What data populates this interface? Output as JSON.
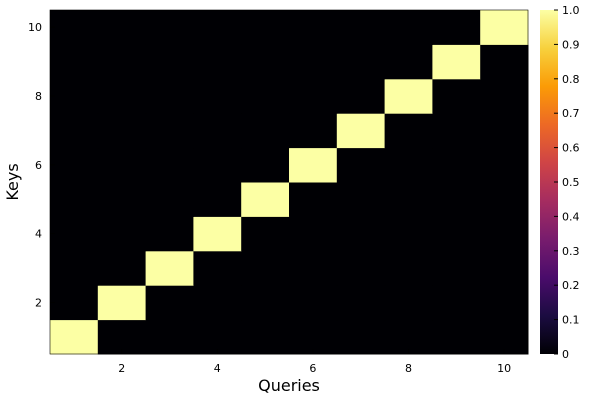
{
  "chart_data": {
    "type": "heatmap",
    "title": "",
    "xlabel": "Queries",
    "ylabel": "Keys",
    "x": [
      1,
      2,
      3,
      4,
      5,
      6,
      7,
      8,
      9,
      10
    ],
    "y": [
      1,
      2,
      3,
      4,
      5,
      6,
      7,
      8,
      9,
      10
    ],
    "z": [
      [
        1,
        0,
        0,
        0,
        0,
        0,
        0,
        0,
        0,
        0
      ],
      [
        0,
        1,
        0,
        0,
        0,
        0,
        0,
        0,
        0,
        0
      ],
      [
        0,
        0,
        1,
        0,
        0,
        0,
        0,
        0,
        0,
        0
      ],
      [
        0,
        0,
        0,
        1,
        0,
        0,
        0,
        0,
        0,
        0
      ],
      [
        0,
        0,
        0,
        0,
        1,
        0,
        0,
        0,
        0,
        0
      ],
      [
        0,
        0,
        0,
        0,
        0,
        1,
        0,
        0,
        0,
        0
      ],
      [
        0,
        0,
        0,
        0,
        0,
        0,
        1,
        0,
        0,
        0
      ],
      [
        0,
        0,
        0,
        0,
        0,
        0,
        0,
        1,
        0,
        0
      ],
      [
        0,
        0,
        0,
        0,
        0,
        0,
        0,
        0,
        1,
        0
      ],
      [
        0,
        0,
        0,
        0,
        0,
        0,
        0,
        0,
        0,
        1
      ]
    ],
    "xlim": [
      0.5,
      10.5
    ],
    "ylim": [
      0.5,
      10.5
    ],
    "xticks": [
      2,
      4,
      6,
      8,
      10
    ],
    "yticks": [
      2,
      4,
      6,
      8,
      10
    ],
    "colorbar": {
      "range": [
        0,
        1
      ],
      "ticks": [
        0,
        0.1,
        0.2,
        0.3,
        0.4,
        0.5,
        0.6,
        0.7,
        0.8,
        0.9,
        1.0
      ],
      "tick_labels": [
        "0",
        "0.1",
        "0.2",
        "0.3",
        "0.4",
        "0.5",
        "0.6",
        "0.7",
        "0.8",
        "0.9",
        "1.0"
      ],
      "colormap": "inferno",
      "colormap_stops": [
        "#000004",
        "#1b0c41",
        "#4a0c6b",
        "#781c6d",
        "#a52c60",
        "#cf4446",
        "#ed6925",
        "#fb9b06",
        "#f7d13d",
        "#fcffa4"
      ]
    },
    "grid": false,
    "legend": "none"
  }
}
